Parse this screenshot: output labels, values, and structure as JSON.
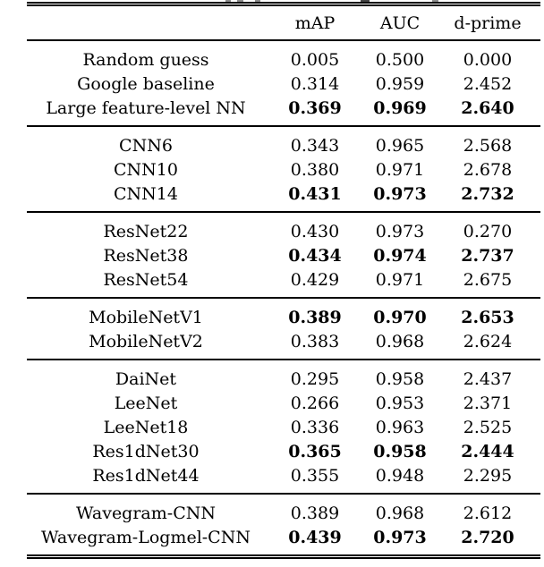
{
  "page": {
    "background": "#ffffff",
    "text_color": "#000000"
  },
  "table": {
    "header": {
      "col0": "",
      "col1": "mAP",
      "col2": "AUC",
      "col3": "d-prime"
    },
    "groups": [
      {
        "rows": [
          {
            "label": "Random guess",
            "values": [
              "0.005",
              "0.500",
              "0.000"
            ],
            "bold": false
          },
          {
            "label": "Google baseline",
            "values": [
              "0.314",
              "0.959",
              "2.452"
            ],
            "bold": false
          },
          {
            "label": "Large feature-level NN",
            "values": [
              "0.369",
              "0.969",
              "2.640"
            ],
            "bold": true
          }
        ]
      },
      {
        "rows": [
          {
            "label": "CNN6",
            "values": [
              "0.343",
              "0.965",
              "2.568"
            ],
            "bold": false
          },
          {
            "label": "CNN10",
            "values": [
              "0.380",
              "0.971",
              "2.678"
            ],
            "bold": false
          },
          {
            "label": "CNN14",
            "values": [
              "0.431",
              "0.973",
              "2.732"
            ],
            "bold": true
          }
        ]
      },
      {
        "rows": [
          {
            "label": "ResNet22",
            "values": [
              "0.430",
              "0.973",
              "0.270"
            ],
            "bold": false
          },
          {
            "label": "ResNet38",
            "values": [
              "0.434",
              "0.974",
              "2.737"
            ],
            "bold": true
          },
          {
            "label": "ResNet54",
            "values": [
              "0.429",
              "0.971",
              "2.675"
            ],
            "bold": false
          }
        ]
      },
      {
        "rows": [
          {
            "label": "MobileNetV1",
            "values": [
              "0.389",
              "0.970",
              "2.653"
            ],
            "bold": true
          },
          {
            "label": "MobileNetV2",
            "values": [
              "0.383",
              "0.968",
              "2.624"
            ],
            "bold": false
          }
        ]
      },
      {
        "rows": [
          {
            "label": "DaiNet",
            "values": [
              "0.295",
              "0.958",
              "2.437"
            ],
            "bold": false
          },
          {
            "label": "LeeNet",
            "values": [
              "0.266",
              "0.953",
              "2.371"
            ],
            "bold": false
          },
          {
            "label": "LeeNet18",
            "values": [
              "0.336",
              "0.963",
              "2.525"
            ],
            "bold": false
          },
          {
            "label": "Res1dNet30",
            "values": [
              "0.365",
              "0.958",
              "2.444"
            ],
            "bold": true
          },
          {
            "label": "Res1dNet44",
            "values": [
              "0.355",
              "0.948",
              "2.295"
            ],
            "bold": false
          }
        ]
      },
      {
        "rows": [
          {
            "label": "Wavegram-CNN",
            "values": [
              "0.389",
              "0.968",
              "2.612"
            ],
            "bold": false
          },
          {
            "label": "Wavegram-Logmel-CNN",
            "values": [
              "0.439",
              "0.973",
              "2.720"
            ],
            "bold": true
          }
        ]
      }
    ]
  }
}
